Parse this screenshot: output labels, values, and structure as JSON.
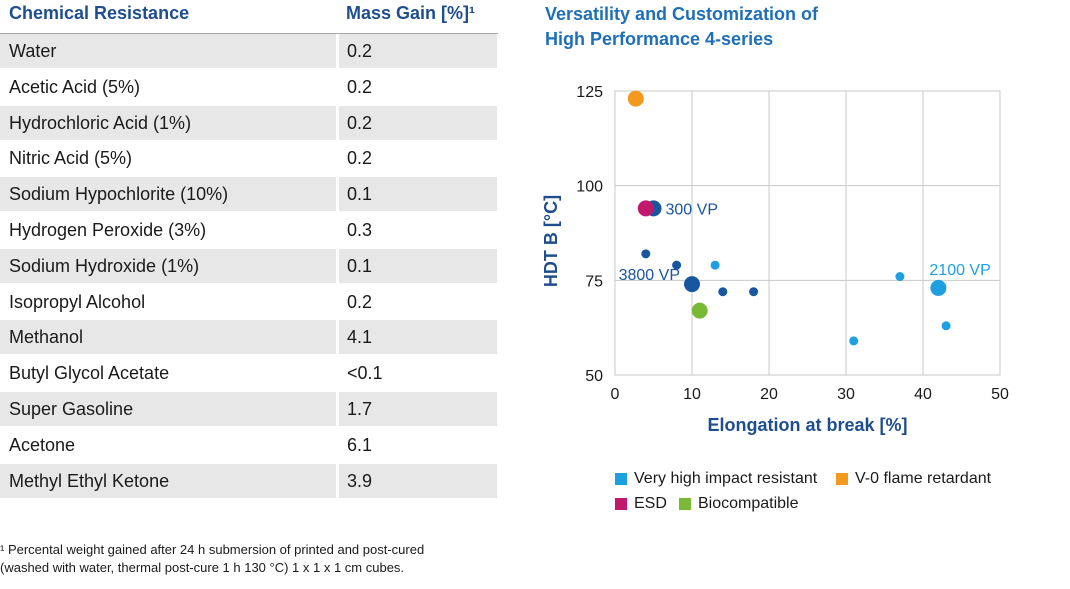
{
  "table": {
    "header": {
      "col1": "Chemical Resistance",
      "col2": "Mass Gain [%]¹"
    },
    "rows": [
      {
        "name": "Water",
        "value": "0.2"
      },
      {
        "name": "Acetic Acid (5%)",
        "value": "0.2"
      },
      {
        "name": "Hydrochloric Acid (1%)",
        "value": "0.2"
      },
      {
        "name": "Nitric Acid (5%)",
        "value": "0.2"
      },
      {
        "name": "Sodium Hypochlorite (10%)",
        "value": "0.1"
      },
      {
        "name": "Hydrogen Peroxide (3%)",
        "value": "0.3"
      },
      {
        "name": "Sodium Hydroxide (1%)",
        "value": "0.1"
      },
      {
        "name": "Isopropyl Alcohol",
        "value": "0.2"
      },
      {
        "name": "Methanol",
        "value": "4.1"
      },
      {
        "name": "Butyl Glycol Acetate",
        "value": "<0.1"
      },
      {
        "name": "Super Gasoline",
        "value": "1.7"
      },
      {
        "name": "Acetone",
        "value": "6.1"
      },
      {
        "name": "Methyl Ethyl Ketone",
        "value": "3.9"
      }
    ]
  },
  "footnote": {
    "line1": "¹ Percental weight gained after 24 h submersion of printed and post-cured",
    "line2": "(washed with water, thermal post-cure 1 h 130 °C) 1 x 1 x 1 cm cubes."
  },
  "chart_data": {
    "type": "scatter",
    "title_lines": [
      "Versatility and Customization of",
      "High Performance 4-series"
    ],
    "xlabel": "Elongation at break  [%]",
    "ylabel": "HDT B  [°C]",
    "xlim": [
      0,
      50
    ],
    "ylim": [
      50,
      125
    ],
    "xticks": [
      0,
      10,
      20,
      30,
      40,
      50
    ],
    "yticks": [
      50,
      75,
      100,
      125
    ],
    "grid": true,
    "legend_position": "bottom",
    "colors": {
      "dark_blue": "#1a56a0",
      "light_blue": "#1ea0e0",
      "orange": "#f39a1e",
      "magenta": "#c0186a",
      "green": "#7ab938",
      "axis_text": "#1f4e8f"
    },
    "legend": [
      {
        "label": "Very high impact resistant",
        "color": "#1ea0e0"
      },
      {
        "label": "V-0 flame retardant",
        "color": "#f39a1e"
      },
      {
        "label": "ESD",
        "color": "#c0186a"
      },
      {
        "label": "Biocompatible",
        "color": "#7ab938"
      }
    ],
    "points": [
      {
        "x": 2.7,
        "y": 123,
        "color": "orange",
        "size": "large"
      },
      {
        "x": 5,
        "y": 94,
        "color": "dark_blue",
        "size": "large",
        "label": "300 VP"
      },
      {
        "x": 4,
        "y": 94,
        "color": "magenta",
        "size": "large"
      },
      {
        "x": 4,
        "y": 82,
        "color": "dark_blue",
        "size": "small"
      },
      {
        "x": 8,
        "y": 79,
        "color": "dark_blue",
        "size": "small"
      },
      {
        "x": 13,
        "y": 79,
        "color": "light_blue",
        "size": "small"
      },
      {
        "x": 10,
        "y": 74,
        "color": "dark_blue",
        "size": "large",
        "label": "3800 VP"
      },
      {
        "x": 14,
        "y": 72,
        "color": "dark_blue",
        "size": "small"
      },
      {
        "x": 18,
        "y": 72,
        "color": "dark_blue",
        "size": "small"
      },
      {
        "x": 11,
        "y": 67,
        "color": "green",
        "size": "large"
      },
      {
        "x": 37,
        "y": 76,
        "color": "light_blue",
        "size": "small"
      },
      {
        "x": 42,
        "y": 73,
        "color": "light_blue",
        "size": "large",
        "label": "2100 VP"
      },
      {
        "x": 43,
        "y": 63,
        "color": "light_blue",
        "size": "small"
      },
      {
        "x": 31,
        "y": 59,
        "color": "light_blue",
        "size": "small"
      }
    ]
  }
}
